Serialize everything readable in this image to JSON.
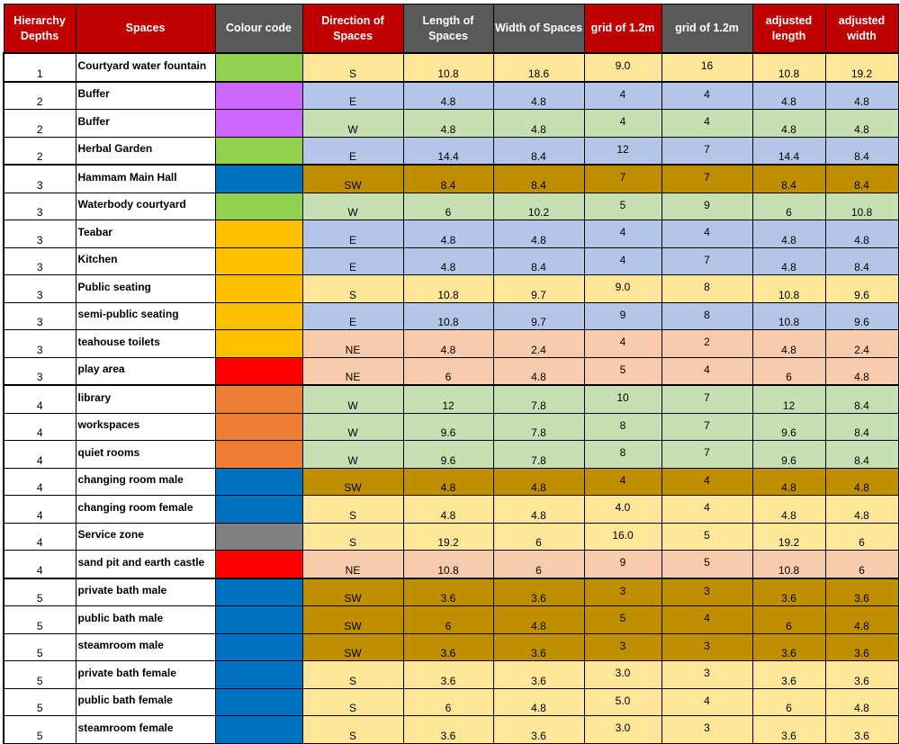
{
  "headers": [
    {
      "label": "Hierarchy Depths",
      "style": "red"
    },
    {
      "label": "Spaces",
      "style": "red"
    },
    {
      "label": "Colour code",
      "style": "gray"
    },
    {
      "label": "Direction of Spaces",
      "style": "red"
    },
    {
      "label": "Length of Spaces",
      "style": "gray"
    },
    {
      "label": "Width of Spaces",
      "style": "gray"
    },
    {
      "label": "grid of 1.2m",
      "style": "red"
    },
    {
      "label": "grid of 1.2m",
      "style": "gray"
    },
    {
      "label": "adjusted length",
      "style": "red"
    },
    {
      "label": "adjusted width",
      "style": "red"
    }
  ],
  "colors": {
    "header_red": "#c00000",
    "header_gray": "#595959",
    "swatch_green": "#92d050",
    "swatch_purple": "#cc66ff",
    "swatch_blue": "#0070c0",
    "swatch_amber": "#ffc000",
    "swatch_red": "#ff0000",
    "swatch_orange": "#ed7d31",
    "swatch_gray": "#808080",
    "dir_S": "#ffe699",
    "dir_E": "#b4c6e7",
    "dir_W": "#c6e0b4",
    "dir_SW": "#bf8f00",
    "dir_NE": "#f8cbad"
  },
  "rows": [
    {
      "depth": "1",
      "space": "Courtyard water fountain",
      "swatch": "#92d050",
      "direction": "S",
      "length": "10.8",
      "width": "18.6",
      "grid1": "9.0",
      "grid2": "16",
      "adj_length": "10.8",
      "adj_width": "19.2",
      "group_start": true
    },
    {
      "depth": "2",
      "space": "Buffer",
      "swatch": "#cc66ff",
      "direction": "E",
      "length": "4.8",
      "width": "4.8",
      "grid1": "4",
      "grid2": "4",
      "adj_length": "4.8",
      "adj_width": "4.8",
      "group_start": true
    },
    {
      "depth": "2",
      "space": "Buffer",
      "swatch": "#cc66ff",
      "direction": "W",
      "length": "4.8",
      "width": "4.8",
      "grid1": "4",
      "grid2": "4",
      "adj_length": "4.8",
      "adj_width": "4.8"
    },
    {
      "depth": "2",
      "space": "Herbal Garden",
      "swatch": "#92d050",
      "direction": "E",
      "length": "14.4",
      "width": "8.4",
      "grid1": "12",
      "grid2": "7",
      "adj_length": "14.4",
      "adj_width": "8.4"
    },
    {
      "depth": "3",
      "space": "Hammam Main Hall",
      "swatch": "#0070c0",
      "direction": "SW",
      "length": "8.4",
      "width": "8.4",
      "grid1": "7",
      "grid2": "7",
      "adj_length": "8.4",
      "adj_width": "8.4",
      "group_start": true
    },
    {
      "depth": "3",
      "space": "Waterbody courtyard",
      "swatch": "#92d050",
      "direction": "W",
      "length": "6",
      "width": "10.2",
      "grid1": "5",
      "grid2": "9",
      "adj_length": "6",
      "adj_width": "10.8"
    },
    {
      "depth": "3",
      "space": "Teabar",
      "swatch": "#ffc000",
      "direction": "E",
      "length": "4.8",
      "width": "4.8",
      "grid1": "4",
      "grid2": "4",
      "adj_length": "4.8",
      "adj_width": "4.8"
    },
    {
      "depth": "3",
      "space": "Kitchen",
      "swatch": "#ffc000",
      "direction": "E",
      "length": "4.8",
      "width": "8.4",
      "grid1": "4",
      "grid2": "7",
      "adj_length": "4.8",
      "adj_width": "8.4"
    },
    {
      "depth": "3",
      "space": "Public seating",
      "swatch": "#ffc000",
      "direction": "S",
      "length": "10.8",
      "width": "9.7",
      "grid1": "9.0",
      "grid2": "8",
      "adj_length": "10.8",
      "adj_width": "9.6"
    },
    {
      "depth": "3",
      "space": "semi-public seating",
      "swatch": "#ffc000",
      "direction": "E",
      "length": "10.8",
      "width": "9.7",
      "grid1": "9",
      "grid2": "8",
      "adj_length": "10.8",
      "adj_width": "9.6"
    },
    {
      "depth": "3",
      "space": "teahouse toilets",
      "swatch": "#ffc000",
      "direction": "NE",
      "length": "4.8",
      "width": "2.4",
      "grid1": "4",
      "grid2": "2",
      "adj_length": "4.8",
      "adj_width": "2.4"
    },
    {
      "depth": "3",
      "space": "play area",
      "swatch": "#ff0000",
      "direction": "NE",
      "length": "6",
      "width": "4.8",
      "grid1": "5",
      "grid2": "4",
      "adj_length": "6",
      "adj_width": "4.8"
    },
    {
      "depth": "4",
      "space": "library",
      "swatch": "#ed7d31",
      "direction": "W",
      "length": "12",
      "width": "7.8",
      "grid1": "10",
      "grid2": "7",
      "adj_length": "12",
      "adj_width": "8.4",
      "group_start": true
    },
    {
      "depth": "4",
      "space": "workspaces",
      "swatch": "#ed7d31",
      "direction": "W",
      "length": "9.6",
      "width": "7.8",
      "grid1": "8",
      "grid2": "7",
      "adj_length": "9.6",
      "adj_width": "8.4"
    },
    {
      "depth": "4",
      "space": "quiet rooms",
      "swatch": "#ed7d31",
      "direction": "W",
      "length": "9.6",
      "width": "7.8",
      "grid1": "8",
      "grid2": "7",
      "adj_length": "9.6",
      "adj_width": "8.4"
    },
    {
      "depth": "4",
      "space": "changing room male",
      "swatch": "#0070c0",
      "direction": "SW",
      "length": "4.8",
      "width": "4.8",
      "grid1": "4",
      "grid2": "4",
      "adj_length": "4.8",
      "adj_width": "4.8"
    },
    {
      "depth": "4",
      "space": "changing room female",
      "swatch": "#0070c0",
      "direction": "S",
      "length": "4.8",
      "width": "4.8",
      "grid1": "4.0",
      "grid2": "4",
      "adj_length": "4.8",
      "adj_width": "4.8"
    },
    {
      "depth": "4",
      "space": "Service zone",
      "swatch": "#808080",
      "direction": "S",
      "length": "19.2",
      "width": "6",
      "grid1": "16.0",
      "grid2": "5",
      "adj_length": "19.2",
      "adj_width": "6"
    },
    {
      "depth": "4",
      "space": "sand pit and earth castle",
      "swatch": "#ff0000",
      "direction": "NE",
      "length": "10.8",
      "width": "6",
      "grid1": "9",
      "grid2": "5",
      "adj_length": "10.8",
      "adj_width": "6"
    },
    {
      "depth": "5",
      "space": "private bath male",
      "swatch": "#0070c0",
      "direction": "SW",
      "length": "3.6",
      "width": "3.6",
      "grid1": "3",
      "grid2": "3",
      "adj_length": "3.6",
      "adj_width": "3.6",
      "group_start": true
    },
    {
      "depth": "5",
      "space": "public bath male",
      "swatch": "#0070c0",
      "direction": "SW",
      "length": "6",
      "width": "4.8",
      "grid1": "5",
      "grid2": "4",
      "adj_length": "6",
      "adj_width": "4.8"
    },
    {
      "depth": "5",
      "space": "steamroom male",
      "swatch": "#0070c0",
      "direction": "SW",
      "length": "3.6",
      "width": "3.6",
      "grid1": "3",
      "grid2": "3",
      "adj_length": "3.6",
      "adj_width": "3.6"
    },
    {
      "depth": "5",
      "space": "private bath female",
      "swatch": "#0070c0",
      "direction": "S",
      "length": "3.6",
      "width": "3.6",
      "grid1": "3.0",
      "grid2": "3",
      "adj_length": "3.6",
      "adj_width": "3.6"
    },
    {
      "depth": "5",
      "space": "public bath female",
      "swatch": "#0070c0",
      "direction": "S",
      "length": "6",
      "width": "4.8",
      "grid1": "5.0",
      "grid2": "4",
      "adj_length": "6",
      "adj_width": "4.8"
    },
    {
      "depth": "5",
      "space": "steamroom female",
      "swatch": "#0070c0",
      "direction": "S",
      "length": "3.6",
      "width": "3.6",
      "grid1": "3.0",
      "grid2": "3",
      "adj_length": "3.6",
      "adj_width": "3.6"
    }
  ]
}
